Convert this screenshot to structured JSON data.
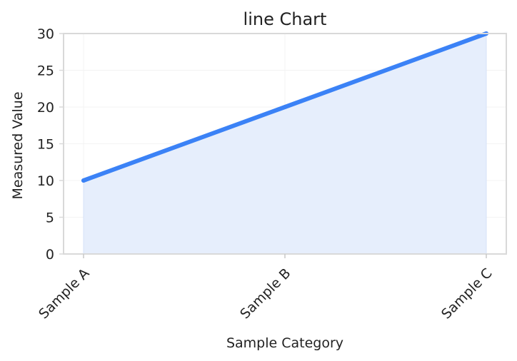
{
  "chart_data": {
    "type": "area",
    "title": "line Chart",
    "xlabel": "Sample Category",
    "ylabel": "Measured Value",
    "categories": [
      "Sample A",
      "Sample B",
      "Sample C"
    ],
    "series": [
      {
        "values": [
          10,
          20,
          30
        ]
      }
    ],
    "ylim": [
      0,
      30
    ],
    "yticks": [
      "0",
      "5",
      "10",
      "15",
      "20",
      "25",
      "30"
    ],
    "grid": true,
    "line_color": "#3b82f6",
    "fill_color": "#e6eefc",
    "axis_color": "#d9d9d9"
  }
}
